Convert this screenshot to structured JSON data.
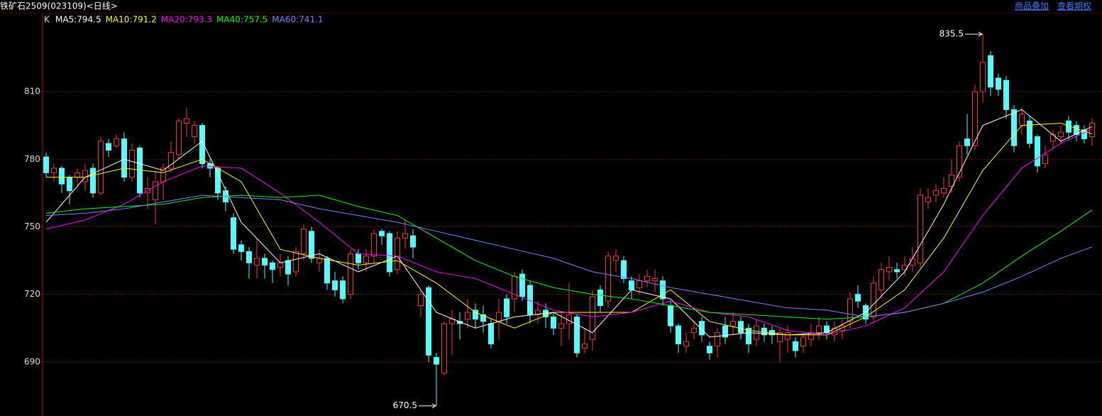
{
  "chart_data": {
    "type": "candlestick",
    "title": "铁矿石2509(023109)<日线>",
    "links": [
      "商品叠加",
      "查看期权"
    ],
    "legend_prefix": "K",
    "ylim": [
      666,
      845
    ],
    "yticks": [
      690,
      720,
      750,
      780,
      810
    ],
    "grid": true,
    "up_color": "#ff3232",
    "down_color": "#54fcfc",
    "candles": {
      "open": [
        781,
        774,
        776,
        772,
        772,
        770,
        776,
        765,
        787,
        786,
        789,
        772,
        785,
        765,
        762,
        770,
        776,
        782,
        796,
        790,
        795,
        778,
        776,
        766,
        754,
        742,
        739,
        733,
        736,
        734,
        732,
        735,
        730,
        738,
        748,
        734,
        736,
        726,
        726,
        720,
        738,
        734,
        737,
        748,
        747,
        731,
        745,
        746,
        715,
        723,
        692,
        685,
        707,
        708,
        709,
        713,
        711,
        707,
        708,
        718,
        718,
        729,
        724,
        711,
        713,
        710,
        705,
        707,
        710,
        696,
        700,
        722,
        717,
        735,
        735,
        726,
        723,
        726,
        726,
        726,
        715,
        706,
        697,
        703,
        708,
        697,
        697,
        706,
        706,
        708,
        705,
        700,
        705,
        704,
        699,
        700,
        699,
        697,
        700,
        703,
        706,
        702,
        704,
        708,
        720,
        715,
        710,
        722,
        730,
        731,
        731,
        733,
        734,
        761,
        764,
        765,
        768,
        772,
        789,
        786,
        810,
        826,
        816,
        815,
        802,
        795,
        797,
        790,
        778,
        788,
        790,
        797,
        795,
        793,
        790
      ],
      "high": [
        783,
        778,
        777,
        773,
        776,
        778,
        778,
        790,
        789,
        791,
        792,
        787,
        786,
        772,
        775,
        778,
        788,
        798,
        803,
        797,
        796,
        780,
        777,
        768,
        756,
        744,
        741,
        745,
        738,
        735,
        738,
        737,
        741,
        751,
        750,
        740,
        737,
        730,
        728,
        740,
        740,
        740,
        749,
        749,
        748,
        748,
        753,
        749,
        722,
        724,
        694,
        708,
        713,
        712,
        718,
        716,
        715,
        709,
        718,
        720,
        730,
        731,
        726,
        717,
        716,
        712,
        712,
        725,
        711,
        705,
        722,
        724,
        739,
        740,
        737,
        728,
        729,
        731,
        731,
        728,
        717,
        707,
        703,
        708,
        710,
        699,
        705,
        710,
        712,
        710,
        707,
        709,
        707,
        706,
        705,
        706,
        701,
        703,
        707,
        710,
        708,
        708,
        709,
        721,
        724,
        716,
        728,
        734,
        737,
        734,
        737,
        741,
        767,
        767,
        769,
        772,
        780,
        788,
        800,
        813,
        835.5,
        828,
        818,
        817,
        804,
        803,
        799,
        791,
        786,
        793,
        795,
        799,
        797,
        795,
        798
      ],
      "low": [
        772,
        770,
        765,
        760,
        768,
        766,
        763,
        764,
        781,
        785,
        770,
        770,
        763,
        758,
        751,
        762,
        774,
        780,
        790,
        787,
        776,
        772,
        762,
        757,
        738,
        735,
        727,
        727,
        727,
        725,
        728,
        724,
        728,
        735,
        734,
        730,
        722,
        719,
        716,
        718,
        731,
        730,
        734,
        742,
        728,
        729,
        740,
        736,
        710,
        690,
        670.5,
        684,
        693,
        700,
        705,
        705,
        703,
        696,
        700,
        707,
        712,
        717,
        707,
        707,
        705,
        702,
        697,
        700,
        692,
        694,
        695,
        712,
        714,
        730,
        725,
        718,
        720,
        723,
        721,
        715,
        703,
        694,
        694,
        700,
        699,
        691,
        692,
        698,
        702,
        700,
        694,
        697,
        699,
        698,
        690,
        694,
        692,
        694,
        697,
        700,
        700,
        699,
        700,
        705,
        714,
        707,
        708,
        718,
        726,
        727,
        728,
        730,
        732,
        758,
        761,
        763,
        765,
        770,
        782,
        784,
        805,
        808,
        808,
        798,
        783,
        791,
        785,
        774,
        776,
        785,
        787,
        789,
        788,
        787,
        786
      ],
      "close": [
        774,
        776,
        769,
        766,
        774,
        775,
        765,
        788,
        784,
        789,
        772,
        784,
        765,
        767,
        770,
        776,
        783,
        797,
        798,
        795,
        778,
        776,
        765,
        761,
        740,
        739,
        734,
        736,
        733,
        731,
        734,
        729,
        739,
        749,
        736,
        736,
        725,
        722,
        718,
        738,
        734,
        737,
        747,
        746,
        730,
        745,
        747,
        741,
        720,
        693,
        689,
        707,
        709,
        707,
        712,
        709,
        708,
        698,
        712,
        710,
        728,
        719,
        711,
        713,
        710,
        705,
        707,
        711,
        694,
        698,
        719,
        715,
        737,
        737,
        727,
        722,
        726,
        728,
        727,
        718,
        706,
        698,
        699,
        705,
        702,
        694,
        703,
        701,
        708,
        703,
        698,
        706,
        702,
        702,
        703,
        703,
        695,
        701,
        703,
        706,
        703,
        705,
        706,
        718,
        717,
        709,
        725,
        731,
        732,
        730,
        733,
        736,
        764,
        763,
        766,
        767,
        773,
        786,
        786,
        810,
        823,
        812,
        811,
        802,
        786,
        800,
        787,
        777,
        782,
        791,
        792,
        792,
        791,
        789,
        796
      ]
    },
    "ma_x": [
      0,
      5,
      10,
      15,
      20,
      25,
      30,
      35,
      40,
      45,
      50,
      55,
      60,
      65,
      70,
      75,
      80,
      85,
      90,
      95,
      100,
      105,
      110,
      115,
      120,
      125,
      130,
      134
    ],
    "series": [
      {
        "name": "MA5:794.5",
        "color": "#ffffff",
        "values": [
          752,
          772,
          780,
          775,
          788,
          752,
          734,
          738,
          730,
          737,
          712,
          705,
          710,
          712,
          703,
          722,
          718,
          701,
          703,
          702,
          703,
          712,
          730,
          760,
          795,
          802,
          788,
          794.5
        ]
      },
      {
        "name": "MA10:791.2",
        "color": "#ffff00",
        "values": [
          772,
          772,
          776,
          774,
          780,
          770,
          740,
          736,
          733,
          735,
          725,
          712,
          705,
          712,
          712,
          712,
          722,
          708,
          704,
          702,
          702,
          710,
          722,
          745,
          775,
          795,
          796,
          791.2
        ]
      },
      {
        "name": "MA20:793.3",
        "color": "#ff00ff",
        "values": [
          749,
          753,
          760,
          770,
          777,
          776,
          765,
          752,
          738,
          737,
          730,
          727,
          720,
          713,
          710,
          712,
          717,
          712,
          710,
          704,
          702,
          706,
          714,
          730,
          755,
          776,
          787,
          793.3
        ]
      },
      {
        "name": "MA40:757.5",
        "color": "#00ff00",
        "values": [
          756,
          758,
          759,
          760,
          763,
          764,
          763,
          764,
          759,
          755,
          745,
          735,
          728,
          723,
          720,
          718,
          715,
          712,
          711,
          710,
          709,
          710,
          712,
          716,
          725,
          737,
          748,
          757.5
        ]
      },
      {
        "name": "MA60:741.1",
        "color": "#8080ff",
        "values": [
          755,
          756,
          758,
          761,
          764,
          763,
          762,
          758,
          755,
          752,
          748,
          744,
          740,
          736,
          730,
          727,
          723,
          720,
          717,
          714,
          713,
          710,
          712,
          716,
          721,
          728,
          736,
          741.1
        ]
      }
    ],
    "annotations": [
      {
        "index": 120,
        "value": 835.5
      },
      {
        "index": 50,
        "value": 670.5
      }
    ]
  }
}
